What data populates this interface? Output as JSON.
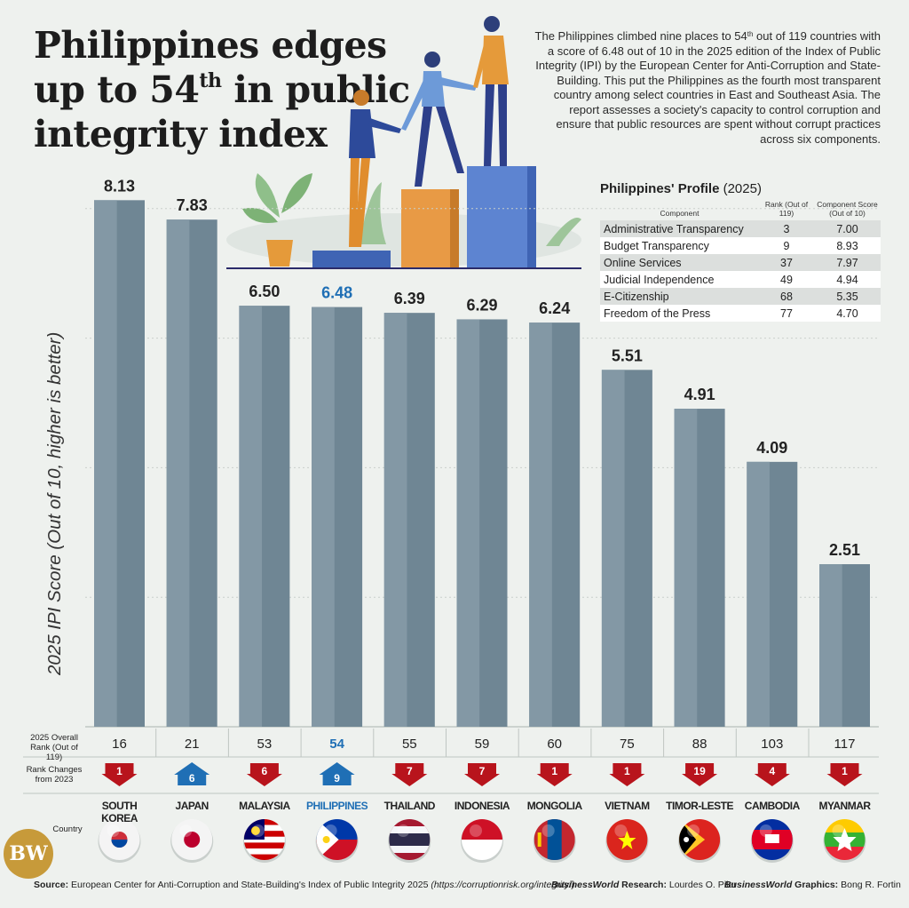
{
  "title": {
    "main": "Philippines edges up to 54",
    "sup": "th",
    "rest": " in public integrity index"
  },
  "intro": {
    "p1": "The Philippines climbed nine places to 54",
    "sup": "th",
    "p2": " out of 119 countries with a score of 6.48 out of 10 in the 2025 edition of the Index of Public Integrity (IPI) by the European Center for Anti-Corruption and State-Building. This put the Philippines as the fourth most transparent country among select countries in East and Southeast Asia. The report assesses a society's capacity to control corruption and ensure that public resources are spent without corrupt practices across six components."
  },
  "profile": {
    "title": "Philippines' Profile",
    "year": "(2025)",
    "headers": {
      "component": "Component",
      "rank": "Rank (Out of 119)",
      "score": "Component Score (Out of 10)"
    },
    "rows": [
      {
        "component": "Administrative Transparency",
        "rank": "3",
        "score": "7.00"
      },
      {
        "component": "Budget Transparency",
        "rank": "9",
        "score": "8.93"
      },
      {
        "component": "Online Services",
        "rank": "37",
        "score": "7.97"
      },
      {
        "component": "Judicial Independence",
        "rank": "49",
        "score": "4.94"
      },
      {
        "component": "E-Citizenship",
        "rank": "68",
        "score": "5.35"
      },
      {
        "component": "Freedom of the Press",
        "rank": "77",
        "score": "4.70"
      }
    ]
  },
  "chart_data": {
    "type": "bar",
    "title": "Philippines edges up to 54th in public integrity index",
    "ylabel": "2025 IPI Score (Out of 10, higher is better)",
    "ylim": [
      0,
      10
    ],
    "categories": [
      "SOUTH KOREA",
      "JAPAN",
      "MALAYSIA",
      "PHILIPPINES",
      "THAILAND",
      "INDONESIA",
      "MONGOLIA",
      "VIETNAM",
      "TIMOR-LESTE",
      "CAMBODIA",
      "MYANMAR"
    ],
    "values": [
      8.13,
      7.83,
      6.5,
      6.48,
      6.39,
      6.29,
      6.24,
      5.51,
      4.91,
      4.09,
      2.51
    ],
    "value_labels": [
      "8.13",
      "7.83",
      "6.50",
      "6.48",
      "6.39",
      "6.29",
      "6.24",
      "5.51",
      "4.91",
      "4.09",
      "2.51"
    ],
    "overall_rank": [
      "16",
      "21",
      "53",
      "54",
      "55",
      "59",
      "60",
      "75",
      "88",
      "103",
      "117"
    ],
    "rank_change": [
      {
        "dir": "down",
        "value": "1"
      },
      {
        "dir": "up",
        "value": "6"
      },
      {
        "dir": "down",
        "value": "6"
      },
      {
        "dir": "up",
        "value": "9"
      },
      {
        "dir": "down",
        "value": "7"
      },
      {
        "dir": "down",
        "value": "7"
      },
      {
        "dir": "down",
        "value": "1"
      },
      {
        "dir": "down",
        "value": "1"
      },
      {
        "dir": "down",
        "value": "19"
      },
      {
        "dir": "down",
        "value": "4"
      },
      {
        "dir": "down",
        "value": "1"
      }
    ],
    "highlight": "PHILIPPINES",
    "grid": true
  },
  "row_labels": {
    "rank": "2025 Overall Rank (Out of 119)",
    "change": "Rank Changes from 2023",
    "country": "Country"
  },
  "colors": {
    "bar": "#6f8694",
    "bar_light": "#8398a5",
    "highlight_text": "#1f6fb5",
    "down": "#b8141c",
    "up": "#1f6fb5"
  },
  "footer": {
    "source_label": "Source:",
    "source_text": " European Center for Anti-Corruption and State-Building's Index of Public Integrity 2025 ",
    "source_url": "(https://corruptionrisk.org/integrity/)",
    "research_brand": "BusinessWorld",
    "research_label": " Research:",
    "research_name": " Lourdes O. Pilar",
    "graphics_brand": "BusinessWorld",
    "graphics_label": " Graphics:",
    "graphics_name": " Bong R. Fortin",
    "logo": "BW"
  }
}
